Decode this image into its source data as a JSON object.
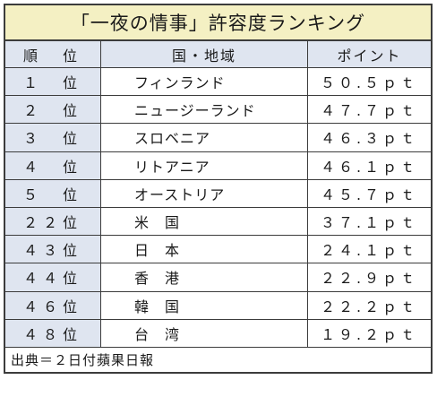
{
  "title": "「一夜の情事」許容度ランキング",
  "headers": {
    "rank": "順　位",
    "country": "国・地域",
    "points": "ポイント"
  },
  "rows": [
    {
      "rank": "１　位",
      "country": "フィンランド",
      "points": "５０.５ｐｔ"
    },
    {
      "rank": "２　位",
      "country": "ニュージーランド",
      "points": "４７.７ｐｔ"
    },
    {
      "rank": "３　位",
      "country": "スロベニア",
      "points": "４６.３ｐｔ"
    },
    {
      "rank": "４　位",
      "country": "リトアニア",
      "points": "４６.１ｐｔ"
    },
    {
      "rank": "５　位",
      "country": "オーストリア",
      "points": "４５.７ｐｔ"
    },
    {
      "rank": "２２位",
      "country": "米　国",
      "points": "３７.１ｐｔ"
    },
    {
      "rank": "４３位",
      "country": "日　本",
      "points": "２４.１ｐｔ"
    },
    {
      "rank": "４４位",
      "country": "香　港",
      "points": "２２.９ｐｔ"
    },
    {
      "rank": "４６位",
      "country": "韓　国",
      "points": "２２.２ｐｔ"
    },
    {
      "rank": "４８位",
      "country": "台　湾",
      "points": "１９.２ｐｔ"
    }
  ],
  "source": "出典＝２日付蘋果日報"
}
